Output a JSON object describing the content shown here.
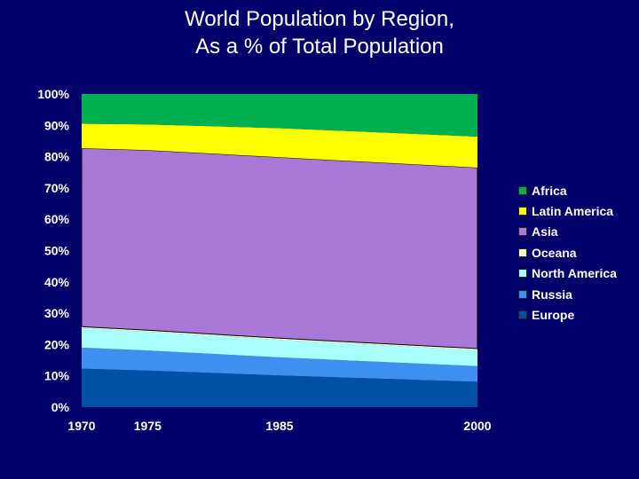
{
  "title_line1": "World Population by Region,",
  "title_line2": "As a % of Total Population",
  "chart_data": {
    "type": "area",
    "stacked": true,
    "x": [
      1970,
      1975,
      1985,
      2000
    ],
    "x_ticks": [
      "1970",
      "1975",
      "1985",
      "2000"
    ],
    "y_ticks": [
      "0%",
      "10%",
      "20%",
      "30%",
      "40%",
      "50%",
      "60%",
      "70%",
      "80%",
      "90%",
      "100%"
    ],
    "ylim": [
      0,
      100
    ],
    "grid": false,
    "legend_position": "right",
    "series": [
      {
        "name": "Europe",
        "color": "#0050a8",
        "values": [
          12.3,
          11.7,
          10.1,
          8.1
        ]
      },
      {
        "name": "Russia",
        "color": "#3f8ff0",
        "values": [
          6.7,
          6.4,
          5.8,
          5.0
        ]
      },
      {
        "name": "North America",
        "color": "#a8ffff",
        "values": [
          6.2,
          6.0,
          5.6,
          5.1
        ]
      },
      {
        "name": "Oceana",
        "color": "#ffffd0",
        "values": [
          0.5,
          0.5,
          0.5,
          0.5
        ]
      },
      {
        "name": "Asia",
        "color": "#a878d8",
        "values": [
          57.0,
          57.5,
          57.8,
          57.8
        ]
      },
      {
        "name": "Latin America",
        "color": "#ffff00",
        "values": [
          7.8,
          8.2,
          9.3,
          9.9
        ]
      },
      {
        "name": "Africa",
        "color": "#00b050",
        "values": [
          9.5,
          9.7,
          10.9,
          13.6
        ]
      }
    ]
  }
}
